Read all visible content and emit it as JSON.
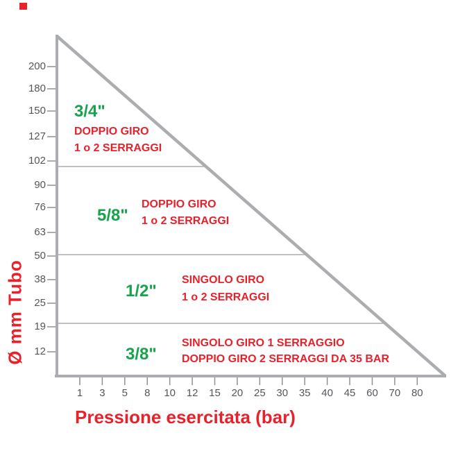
{
  "chart_data": {
    "type": "area",
    "title": "",
    "xlabel": "Pressione esercitata (bar)",
    "ylabel": "Ø mm Tubo",
    "x_ticks": [
      1,
      3,
      5,
      8,
      10,
      12,
      15,
      20,
      25,
      30,
      35,
      40,
      45,
      60,
      70,
      80
    ],
    "y_ticks": [
      200,
      180,
      150,
      127,
      102,
      90,
      76,
      63,
      50,
      38,
      25,
      19,
      12
    ],
    "grid": "off",
    "legend_position": "none",
    "boundary_line": "diagonal from above 200 mm at 1 bar down to 0 mm at 80 bar",
    "zone_divider_diameters_mm": [
      102,
      50,
      19
    ],
    "zones": [
      {
        "size": "3/4\"",
        "line1": "DOPPIO GIRO",
        "line2": "1 o 2 SERRAGGI",
        "diameter_range_mm": "102 and above"
      },
      {
        "size": "5/8\"",
        "line1": "DOPPIO GIRO",
        "line2": "1 o 2 SERRAGGI",
        "diameter_range_mm": "50–102"
      },
      {
        "size": "1/2\"",
        "line1": "SINGOLO GIRO",
        "line2": "1 o 2 SERRAGGI",
        "diameter_range_mm": "19–50"
      },
      {
        "size": "3/8\"",
        "line1": "SINGOLO GIRO 1 SERRAGGIO",
        "line2": "DOPPIO GIRO 2 SERRAGGI DA 35 BAR",
        "diameter_range_mm": "below 19"
      }
    ],
    "colors": {
      "zone_size_green": "#17a24c",
      "note_red": "#e8212b",
      "axis_gray": "#abadb0",
      "divider_gray": "#aaacae",
      "tick_mark_gray": "#8f9194",
      "tick_text_gray": "#54565a",
      "corner_mark_red": "#e8212b"
    }
  }
}
